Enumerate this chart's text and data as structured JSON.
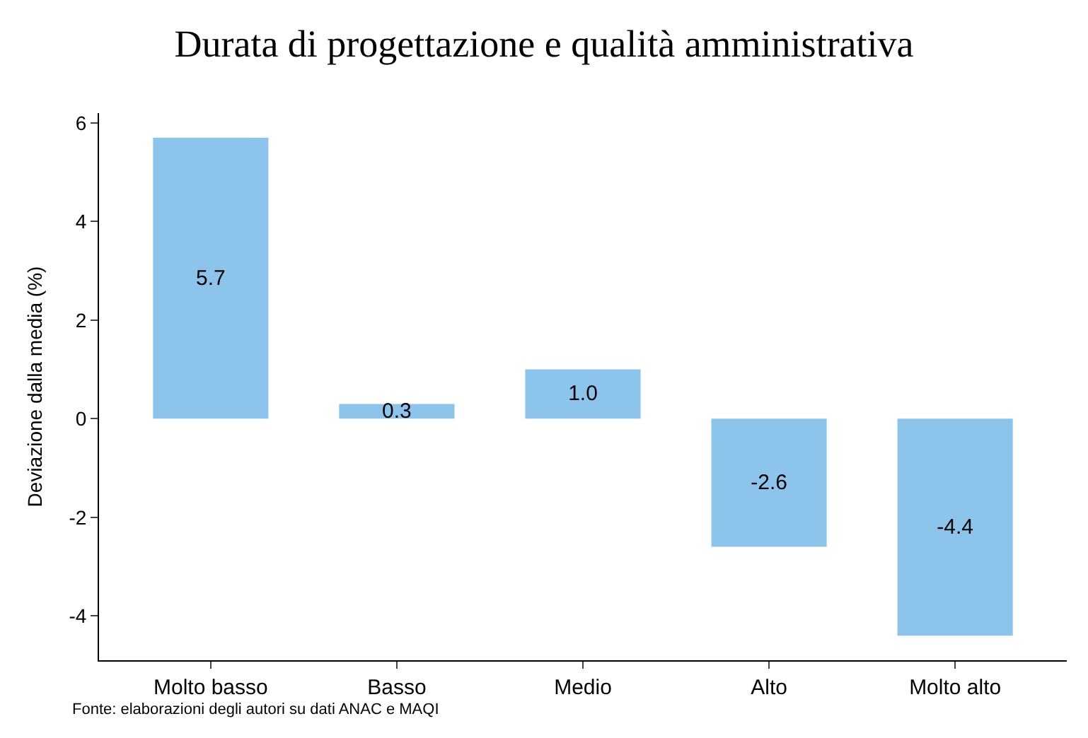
{
  "chart_data": {
    "type": "bar",
    "title": "Durata di progettazione e qualità amministrativa",
    "ylabel": "Deviazione dalla media (%)",
    "categories": [
      "Molto basso",
      "Basso",
      "Medio",
      "Alto",
      "Molto alto"
    ],
    "values": [
      5.7,
      0.3,
      1.0,
      -2.6,
      -4.4
    ],
    "color": "#8cc4eb",
    "ylim": [
      -4.9,
      6.2
    ],
    "yticks": [
      {
        "value": -4,
        "label": "-4"
      },
      {
        "value": -2,
        "label": "-2"
      },
      0,
      2,
      4,
      6
    ],
    "value_labels": [
      "5.7",
      "0.3",
      "1.0",
      "-2.6",
      "-4.4"
    ],
    "annotations": [
      "Fonte: elaborazioni degli autori su dati ANAC e MAQI"
    ]
  }
}
